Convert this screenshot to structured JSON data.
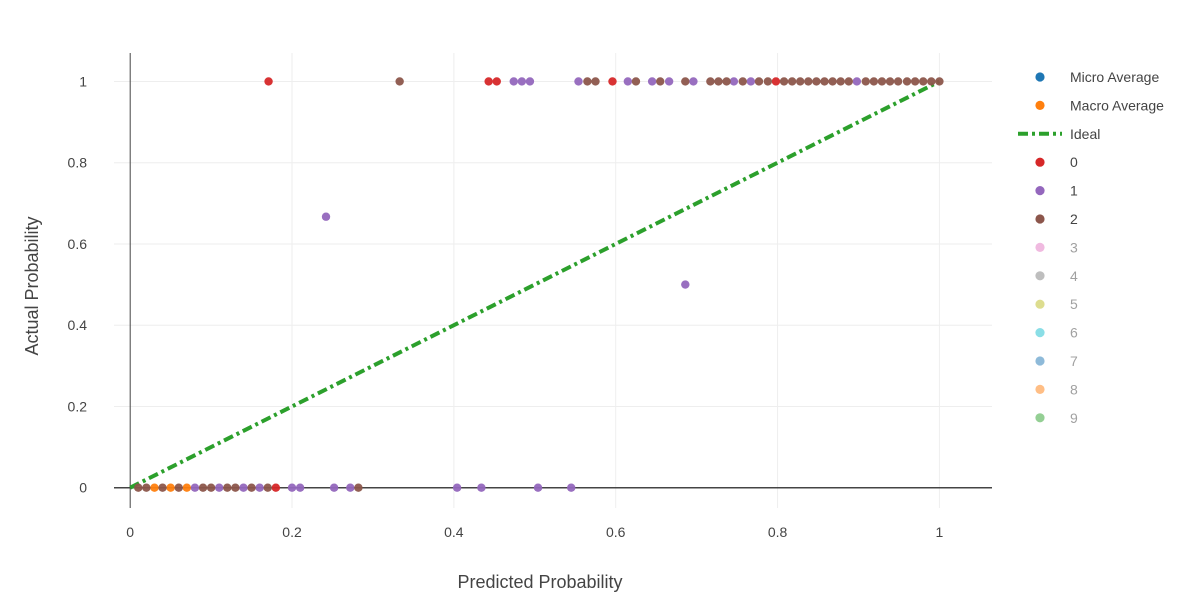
{
  "chart_data": {
    "type": "scatter",
    "title": "",
    "xlabel": "Predicted Probability",
    "ylabel": "Actual Probability",
    "xlim": [
      -0.02,
      1.065
    ],
    "ylim": [
      -0.05,
      1.07
    ],
    "x_ticks": [
      {
        "value": 0,
        "label": "0"
      },
      {
        "value": 0.2,
        "label": "0.2"
      },
      {
        "value": 0.4,
        "label": "0.4"
      },
      {
        "value": 0.6,
        "label": "0.6"
      },
      {
        "value": 0.8,
        "label": "0.8"
      },
      {
        "value": 1,
        "label": "1"
      }
    ],
    "y_ticks": [
      {
        "value": 0,
        "label": "0"
      },
      {
        "value": 0.2,
        "label": "0.2"
      },
      {
        "value": 0.4,
        "label": "0.4"
      },
      {
        "value": 0.6,
        "label": "0.6"
      },
      {
        "value": 0.8,
        "label": "0.8"
      },
      {
        "value": 1,
        "label": "1"
      }
    ],
    "grid": true,
    "legend_position": "right",
    "series": [
      {
        "name": "Micro Average",
        "kind": "marker",
        "color": "#1f77b4",
        "visible": true,
        "x": [],
        "y": []
      },
      {
        "name": "Macro Average",
        "kind": "marker",
        "color": "#ff7f0e",
        "visible": true,
        "x": [
          0.03,
          0.05,
          0.07
        ],
        "y": [
          0,
          0,
          0
        ]
      },
      {
        "name": "Ideal",
        "kind": "line",
        "color": "#2ca02c",
        "visible": true,
        "x": [
          0,
          1
        ],
        "y": [
          0,
          1
        ]
      },
      {
        "name": "0",
        "kind": "marker",
        "color": "#d62728",
        "visible": true,
        "x": [
          0.171,
          0.443,
          0.453,
          0.596,
          0.798,
          0.18
        ],
        "y": [
          1,
          1,
          1,
          1,
          1,
          0
        ]
      },
      {
        "name": "1",
        "kind": "marker",
        "color": "#9467bd",
        "visible": true,
        "x": [
          0.242,
          0.686,
          0.474,
          0.484,
          0.494,
          0.554,
          0.615,
          0.645,
          0.666,
          0.696,
          0.746,
          0.767,
          0.898,
          0.08,
          0.11,
          0.14,
          0.16,
          0.2,
          0.21,
          0.252,
          0.272,
          0.404,
          0.434,
          0.504,
          0.545
        ],
        "y": [
          0.667,
          0.5,
          1,
          1,
          1,
          1,
          1,
          1,
          1,
          1,
          1,
          1,
          1,
          0,
          0,
          0,
          0,
          0,
          0,
          0,
          0,
          0,
          0,
          0,
          0
        ]
      },
      {
        "name": "2",
        "kind": "marker",
        "color": "#8c564b",
        "visible": true,
        "x": [
          0.333,
          0.565,
          0.575,
          0.625,
          0.655,
          0.686,
          0.717,
          0.727,
          0.737,
          0.757,
          0.777,
          0.788,
          0.808,
          0.818,
          0.828,
          0.838,
          0.848,
          0.858,
          0.868,
          0.878,
          0.888,
          0.909,
          0.919,
          0.929,
          0.939,
          0.949,
          0.96,
          0.97,
          0.98,
          0.99,
          1.0,
          0.01,
          0.02,
          0.04,
          0.06,
          0.09,
          0.1,
          0.12,
          0.13,
          0.15,
          0.17,
          0.282
        ],
        "y": [
          1,
          1,
          1,
          1,
          1,
          1,
          1,
          1,
          1,
          1,
          1,
          1,
          1,
          1,
          1,
          1,
          1,
          1,
          1,
          1,
          1,
          1,
          1,
          1,
          1,
          1,
          1,
          1,
          1,
          1,
          1,
          0,
          0,
          0,
          0,
          0,
          0,
          0,
          0,
          0,
          0,
          0
        ]
      },
      {
        "name": "3",
        "kind": "marker",
        "color": "#e377c2",
        "visible": false,
        "x": [],
        "y": []
      },
      {
        "name": "4",
        "kind": "marker",
        "color": "#7f7f7f",
        "visible": false,
        "x": [],
        "y": []
      },
      {
        "name": "5",
        "kind": "marker",
        "color": "#bcbd22",
        "visible": false,
        "x": [],
        "y": []
      },
      {
        "name": "6",
        "kind": "marker",
        "color": "#17becf",
        "visible": false,
        "x": [],
        "y": []
      },
      {
        "name": "7",
        "kind": "marker",
        "color": "#1f77b4",
        "visible": false,
        "x": [],
        "y": []
      },
      {
        "name": "8",
        "kind": "marker",
        "color": "#ff7f0e",
        "visible": false,
        "x": [],
        "y": []
      },
      {
        "name": "9",
        "kind": "marker",
        "color": "#2ca02c",
        "visible": false,
        "x": [],
        "y": []
      }
    ]
  }
}
